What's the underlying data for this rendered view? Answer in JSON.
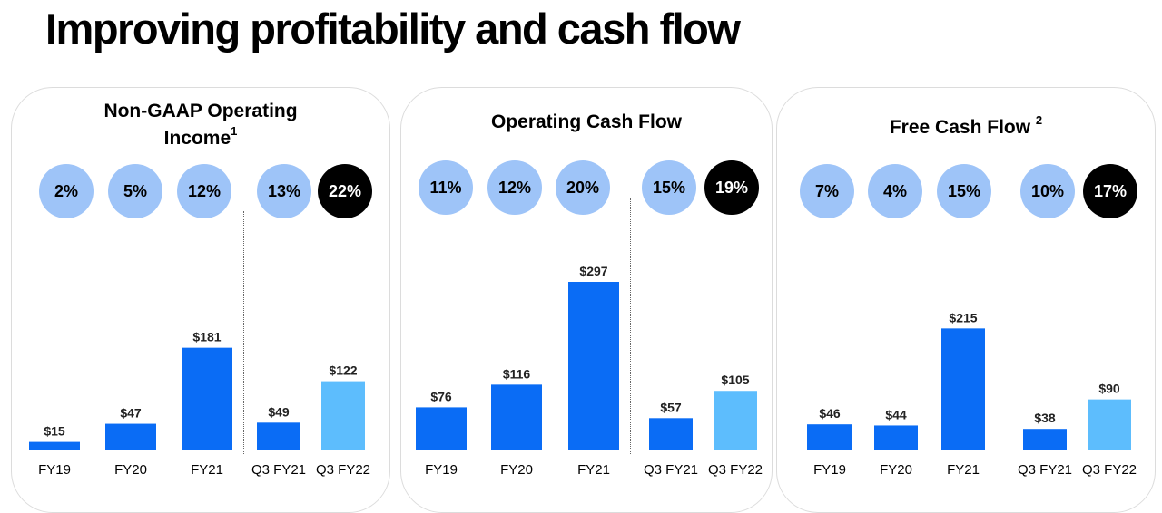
{
  "title": "Improving profitability and cash flow",
  "colors": {
    "bar": "#0a6cf5",
    "highlight_bar": "#5dbdfd",
    "circle": "#9ec4f8",
    "circle_dark": "#000000"
  },
  "panels": [
    {
      "title_line1": "Non-GAAP Operating",
      "title_line2": "Income",
      "footnote": "1",
      "margins": [
        "2%",
        "5%",
        "12%",
        "13%",
        "22%"
      ]
    },
    {
      "title_line1": "Operating Cash Flow",
      "title_line2": "",
      "footnote": "",
      "margins": [
        "11%",
        "12%",
        "20%",
        "15%",
        "19%"
      ]
    },
    {
      "title_line1": "Free Cash Flow",
      "title_line2": "",
      "footnote": "2",
      "margins": [
        "7%",
        "4%",
        "15%",
        "10%",
        "17%"
      ]
    }
  ],
  "chart_data": [
    {
      "type": "bar",
      "title": "Non-GAAP Operating Income",
      "categories": [
        "FY19",
        "FY20",
        "FY21",
        "Q3 FY21",
        "Q3 FY22"
      ],
      "values": [
        15,
        47,
        181,
        49,
        122
      ],
      "value_labels": [
        "$15",
        "$47",
        "$181",
        "$49",
        "$122"
      ]
    },
    {
      "type": "bar",
      "title": "Operating Cash Flow",
      "categories": [
        "FY19",
        "FY20",
        "FY21",
        "Q3 FY21",
        "Q3 FY22"
      ],
      "values": [
        76,
        116,
        297,
        57,
        105
      ],
      "value_labels": [
        "$76",
        "$116",
        "$297",
        "$57",
        "$105"
      ]
    },
    {
      "type": "bar",
      "title": "Free Cash Flow",
      "categories": [
        "FY19",
        "FY20",
        "FY21",
        "Q3 FY21",
        "Q3 FY22"
      ],
      "values": [
        46,
        44,
        215,
        38,
        90
      ],
      "value_labels": [
        "$46",
        "$44",
        "$215",
        "$38",
        "$90"
      ]
    }
  ]
}
